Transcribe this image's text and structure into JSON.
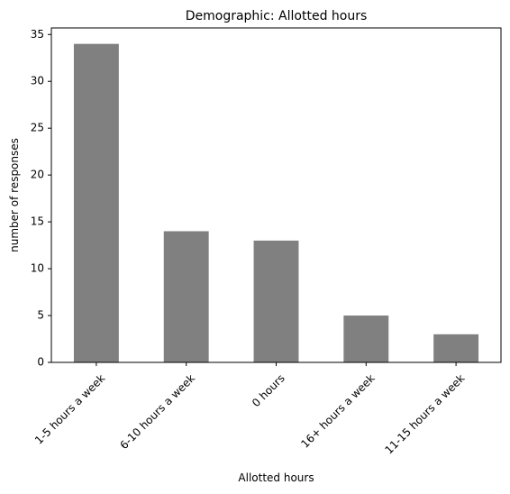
{
  "chart_data": {
    "type": "bar",
    "title": "Demographic: Allotted hours",
    "xlabel": "Allotted hours",
    "ylabel": "number of responses",
    "categories": [
      "1-5 hours a week",
      "6-10 hours a week",
      "0 hours",
      "16+ hours a week",
      "11-15 hours a week"
    ],
    "values": [
      34,
      14,
      13,
      5,
      3
    ],
    "ylim": [
      0,
      35.7
    ],
    "yticks": [
      0,
      5,
      10,
      15,
      20,
      25,
      30,
      35
    ],
    "grid": false,
    "legend": "none",
    "bar_color": "#808080"
  }
}
